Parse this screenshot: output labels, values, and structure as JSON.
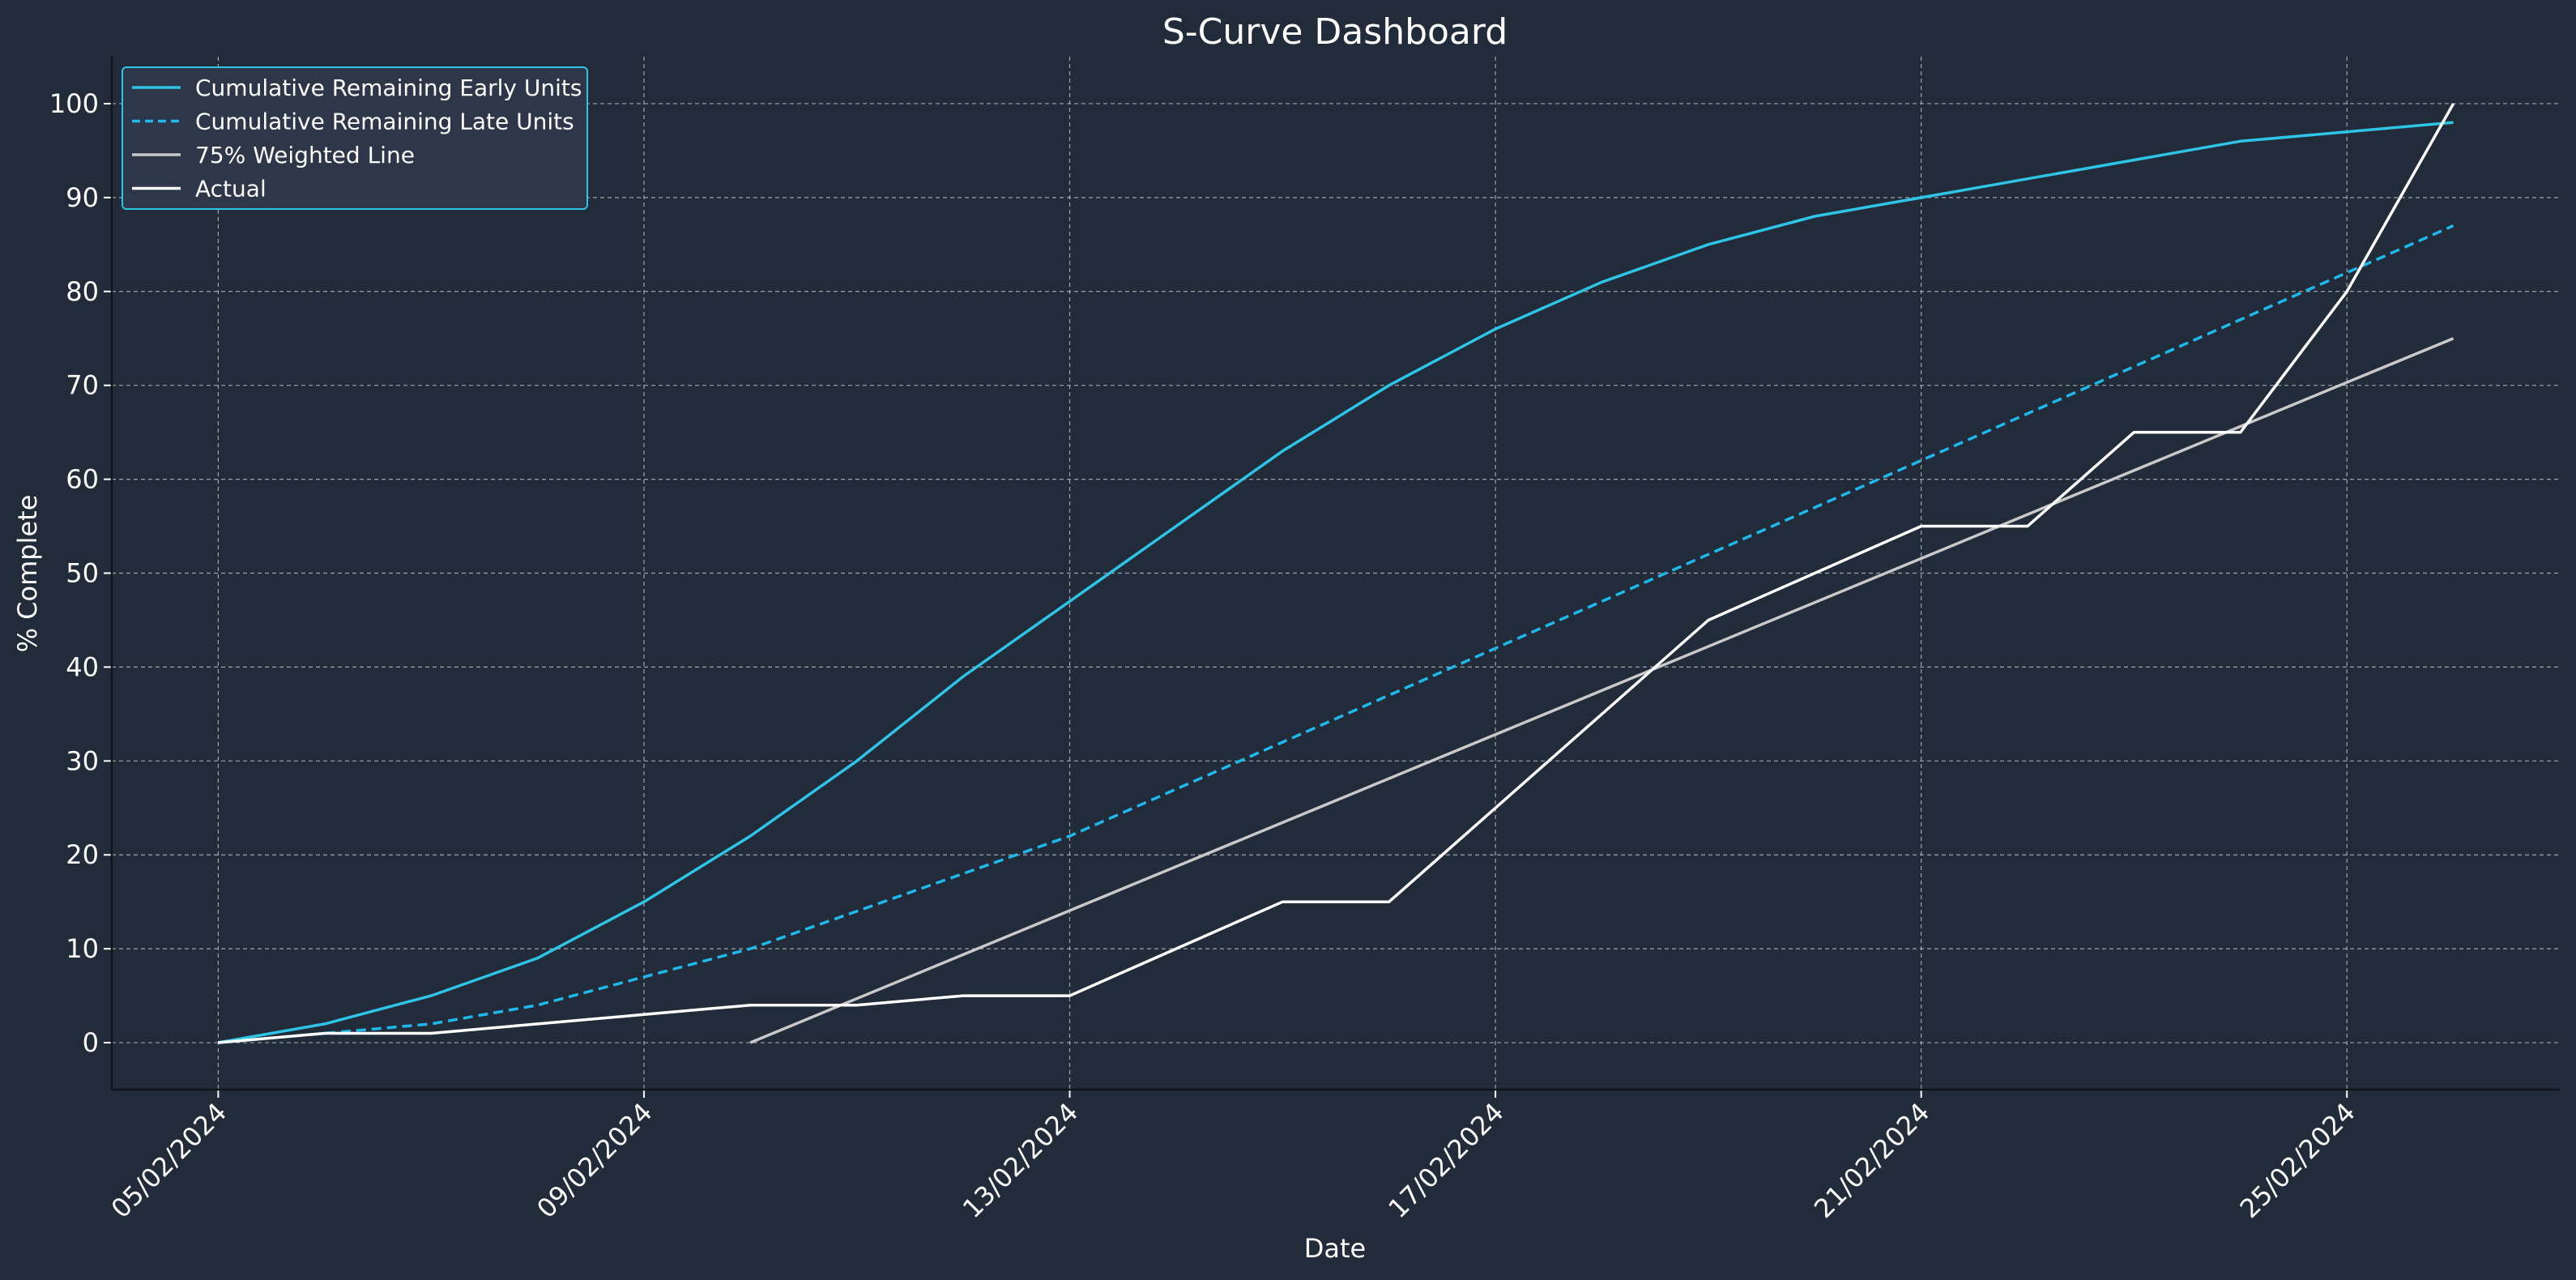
{
  "chart_data": {
    "type": "line",
    "title": "S-Curve Dashboard",
    "xlabel": "Date",
    "ylabel": "% Complete",
    "ylim": [
      -5,
      105
    ],
    "yticks": [
      0,
      10,
      20,
      30,
      40,
      50,
      60,
      70,
      80,
      90,
      100
    ],
    "xlim": [
      "2024-02-04",
      "2024-02-27"
    ],
    "xticks": [
      "2024-02-05",
      "2024-02-09",
      "2024-02-13",
      "2024-02-17",
      "2024-02-21",
      "2024-02-25"
    ],
    "xtick_labels": [
      "05/02/2024",
      "09/02/2024",
      "13/02/2024",
      "17/02/2024",
      "21/02/2024",
      "25/02/2024"
    ],
    "grid": true,
    "legend_position": "top-left",
    "background": "#222b3a",
    "series": [
      {
        "name": "Cumulative Remaining Early Units",
        "color": "#2ec4e6",
        "style": "solid",
        "points": [
          [
            "2024-02-05",
            0
          ],
          [
            "2024-02-06",
            2
          ],
          [
            "2024-02-07",
            5
          ],
          [
            "2024-02-08",
            9
          ],
          [
            "2024-02-09",
            15
          ],
          [
            "2024-02-10",
            22
          ],
          [
            "2024-02-11",
            30
          ],
          [
            "2024-02-12",
            39
          ],
          [
            "2024-02-13",
            47
          ],
          [
            "2024-02-14",
            55
          ],
          [
            "2024-02-15",
            63
          ],
          [
            "2024-02-16",
            70
          ],
          [
            "2024-02-17",
            76
          ],
          [
            "2024-02-18",
            81
          ],
          [
            "2024-02-19",
            85
          ],
          [
            "2024-02-20",
            88
          ],
          [
            "2024-02-21",
            90
          ],
          [
            "2024-02-22",
            92
          ],
          [
            "2024-02-23",
            94
          ],
          [
            "2024-02-24",
            96
          ],
          [
            "2024-02-25",
            97
          ],
          [
            "2024-02-26",
            98
          ]
        ]
      },
      {
        "name": "Cumulative Remaining Late Units",
        "color": "#1fb8ea",
        "style": "dashed",
        "points": [
          [
            "2024-02-05",
            0
          ],
          [
            "2024-02-06",
            1
          ],
          [
            "2024-02-07",
            2
          ],
          [
            "2024-02-08",
            4
          ],
          [
            "2024-02-09",
            7
          ],
          [
            "2024-02-10",
            10
          ],
          [
            "2024-02-11",
            14
          ],
          [
            "2024-02-12",
            18
          ],
          [
            "2024-02-13",
            22
          ],
          [
            "2024-02-14",
            27
          ],
          [
            "2024-02-15",
            32
          ],
          [
            "2024-02-16",
            37
          ],
          [
            "2024-02-17",
            42
          ],
          [
            "2024-02-18",
            47
          ],
          [
            "2024-02-19",
            52
          ],
          [
            "2024-02-20",
            57
          ],
          [
            "2024-02-21",
            62
          ],
          [
            "2024-02-22",
            67
          ],
          [
            "2024-02-23",
            72
          ],
          [
            "2024-02-24",
            77
          ],
          [
            "2024-02-25",
            82
          ],
          [
            "2024-02-26",
            87
          ]
        ]
      },
      {
        "name": "75% Weighted Line",
        "color": "#c9c9c9",
        "style": "solid",
        "points": [
          [
            "2024-02-10",
            0
          ],
          [
            "2024-02-26",
            75
          ]
        ]
      },
      {
        "name": "Actual",
        "color": "#ffffff",
        "style": "solid",
        "points": [
          [
            "2024-02-05",
            0
          ],
          [
            "2024-02-06",
            1
          ],
          [
            "2024-02-07",
            1
          ],
          [
            "2024-02-08",
            2
          ],
          [
            "2024-02-09",
            3
          ],
          [
            "2024-02-10",
            4
          ],
          [
            "2024-02-11",
            4
          ],
          [
            "2024-02-12",
            5
          ],
          [
            "2024-02-13",
            5
          ],
          [
            "2024-02-14",
            10
          ],
          [
            "2024-02-15",
            15
          ],
          [
            "2024-02-16",
            15
          ],
          [
            "2024-02-17",
            25
          ],
          [
            "2024-02-18",
            35
          ],
          [
            "2024-02-19",
            45
          ],
          [
            "2024-02-20",
            50
          ],
          [
            "2024-02-21",
            55
          ],
          [
            "2024-02-22",
            55
          ],
          [
            "2024-02-23",
            65
          ],
          [
            "2024-02-24",
            65
          ],
          [
            "2024-02-25",
            80
          ],
          [
            "2024-02-26",
            100
          ]
        ]
      }
    ]
  }
}
